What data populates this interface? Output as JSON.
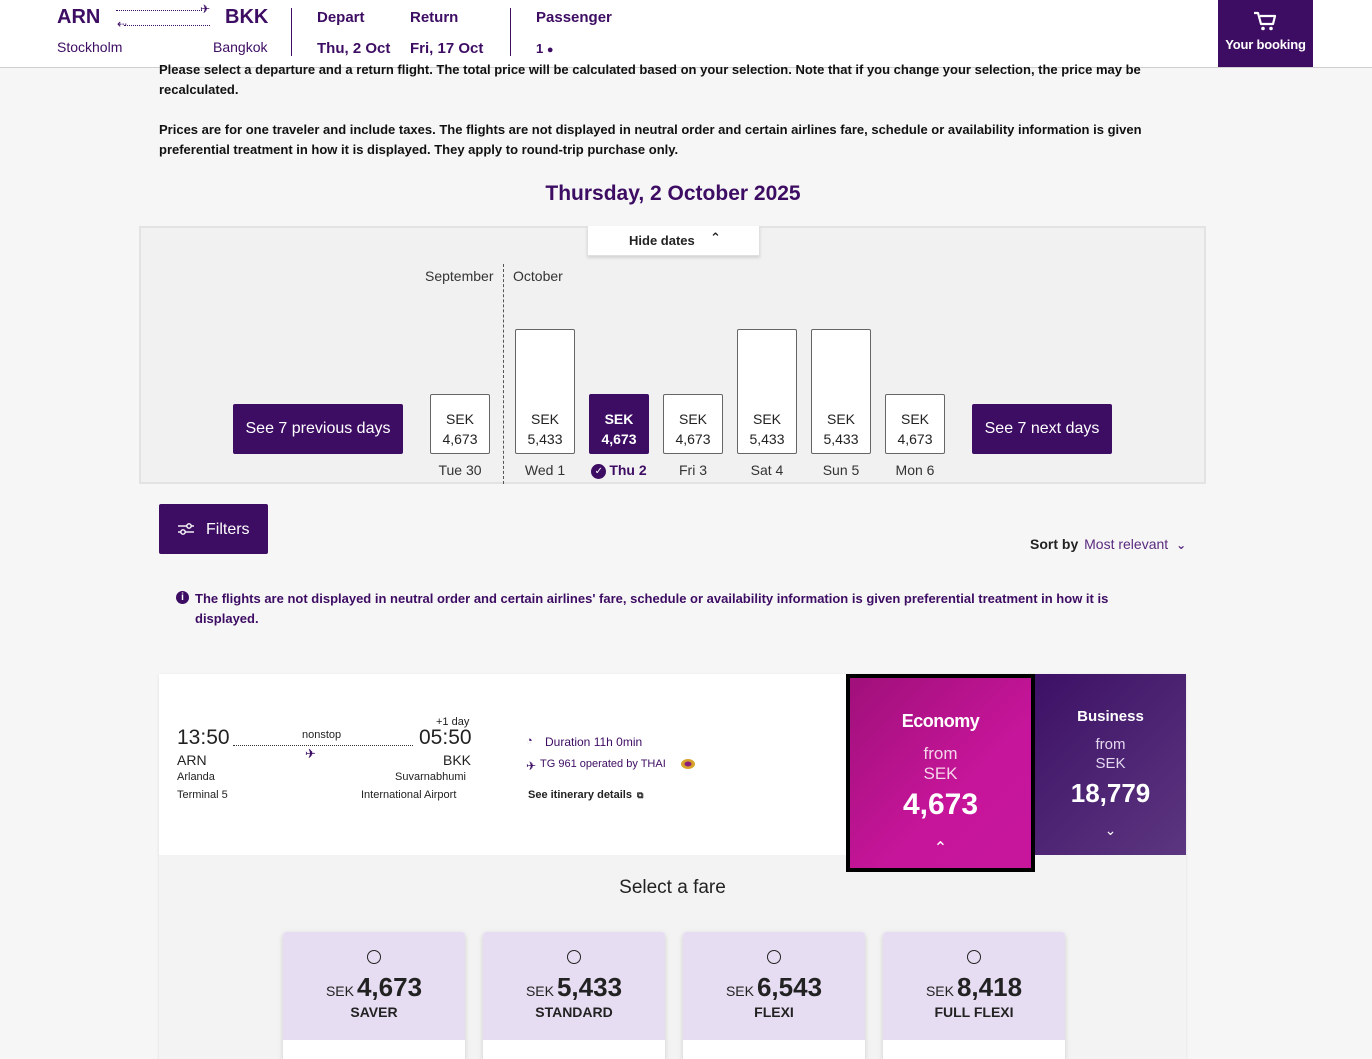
{
  "header": {
    "origin_code": "ARN",
    "origin_city": "Stockholm",
    "destination_code": "BKK",
    "destination_city": "Bangkok",
    "depart_label": "Depart",
    "depart_date": "Thu, 2 Oct",
    "return_label": "Return",
    "return_date": "Fri, 17 Oct",
    "passenger_label": "Passenger",
    "passenger_count": "1",
    "booking_label": "Your booking"
  },
  "info": {
    "line1": "Please select a departure and a return flight. The total price will be calculated based on your selection. Note that if you change your selection, the price may be recalculated.",
    "line2": "Prices are for one traveler and include taxes. The flights are not displayed in neutral order and certain airlines fare, schedule or availability information is given preferential treatment in how it is displayed. They apply to round-trip purchase only."
  },
  "selected_date": "Thursday, 2 October 2025",
  "date_panel": {
    "hide_label": "Hide dates",
    "month_prev": "September",
    "month_next": "October",
    "prev_btn": "See 7 previous days",
    "next_btn": "See 7 next days",
    "days": [
      {
        "label": "Tue 30",
        "currency": "SEK",
        "price": "4,673",
        "price_value": 4673,
        "selected": false
      },
      {
        "label": "Wed 1",
        "currency": "SEK",
        "price": "5,433",
        "price_value": 5433,
        "selected": false
      },
      {
        "label": "Thu 2",
        "currency": "SEK",
        "price": "4,673",
        "price_value": 4673,
        "selected": true
      },
      {
        "label": "Fri 3",
        "currency": "SEK",
        "price": "4,673",
        "price_value": 4673,
        "selected": false
      },
      {
        "label": "Sat 4",
        "currency": "SEK",
        "price": "5,433",
        "price_value": 5433,
        "selected": false
      },
      {
        "label": "Sun 5",
        "currency": "SEK",
        "price": "5,433",
        "price_value": 5433,
        "selected": false
      },
      {
        "label": "Mon 6",
        "currency": "SEK",
        "price": "4,673",
        "price_value": 4673,
        "selected": false
      }
    ]
  },
  "filters_label": "Filters",
  "sort": {
    "label": "Sort by",
    "value": "Most relevant"
  },
  "notice": "The flights are not displayed in neutral order and certain airlines' fare, schedule or availability information is given preferential treatment in how it is displayed.",
  "flight": {
    "depart_time": "13:50",
    "depart_code": "ARN",
    "depart_airport": "Arlanda",
    "depart_terminal": "Terminal 5",
    "stops": "nonstop",
    "day_offset": "+1 day",
    "arrive_time": "05:50",
    "arrive_code": "BKK",
    "arrive_airport_1": "Suvarnabhumi",
    "arrive_airport_2": "International Airport",
    "duration": "Duration 11h 0min",
    "operated": "TG 961 operated by THAI",
    "itinerary_link": "See itinerary details"
  },
  "economy": {
    "name": "Economy",
    "from": "from",
    "currency": "SEK",
    "price": "4,673"
  },
  "business": {
    "name": "Business",
    "from": "from",
    "currency": "SEK",
    "price": "18,779"
  },
  "select_fare_title": "Select a fare",
  "fares": [
    {
      "currency": "SEK",
      "price": "4,673",
      "name": "SAVER"
    },
    {
      "currency": "SEK",
      "price": "5,433",
      "name": "STANDARD"
    },
    {
      "currency": "SEK",
      "price": "6,543",
      "name": "FLEXI"
    },
    {
      "currency": "SEK",
      "price": "8,418",
      "name": "FULL FLEXI"
    }
  ],
  "colors": {
    "brand": "#3d0c63",
    "economy": "#c6159a",
    "fare_bg": "#e7ddf2"
  }
}
